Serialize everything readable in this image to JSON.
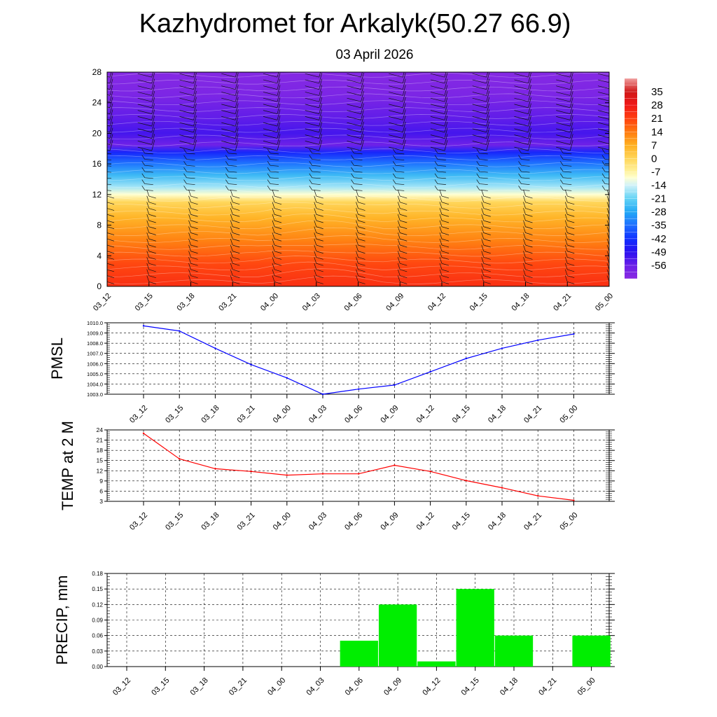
{
  "header": {
    "title": "Kazhydromet for Arkalyk(50.27 66.9)",
    "subtitle": "03 April 2026"
  },
  "colors": {
    "pmsl_line": "#0000ff",
    "temp_line": "#ff0000",
    "precip_bar": "#00ee00"
  },
  "chart_data": [
    {
      "type": "heatmap",
      "name": "cross-section",
      "title": "Kazhydromet for Arkalyk(50.27 66.9)",
      "subtitle": "03 April 2026",
      "categories": [
        "03_12",
        "03_15",
        "03_18",
        "03_21",
        "04_00",
        "04_03",
        "04_06",
        "04_09",
        "04_12",
        "04_15",
        "04_18",
        "04_21",
        "05_00"
      ],
      "ylim": [
        0,
        28
      ],
      "yticks": [
        "0",
        "4",
        "8",
        "12",
        "16",
        "20",
        "24",
        "28"
      ],
      "colorbar_labels": [
        "35",
        "28",
        "21",
        "14",
        "7",
        "0",
        "-7",
        "-14",
        "-21",
        "-28",
        "-35",
        "-42",
        "-49",
        "-56"
      ],
      "colorbar_range": [
        -63,
        42
      ],
      "color_stops": [
        {
          "v": -63,
          "c": "#8a2be2"
        },
        {
          "v": -56,
          "c": "#6a1fe8"
        },
        {
          "v": -49,
          "c": "#2a10f0"
        },
        {
          "v": -42,
          "c": "#1030ff"
        },
        {
          "v": -35,
          "c": "#1f6fff"
        },
        {
          "v": -28,
          "c": "#22a8f5"
        },
        {
          "v": -21,
          "c": "#63d3f5"
        },
        {
          "v": -14,
          "c": "#d2f2f8"
        },
        {
          "v": -10,
          "c": "#ffffd0"
        },
        {
          "v": -7,
          "c": "#fff3a0"
        },
        {
          "v": 0,
          "c": "#ffd65a"
        },
        {
          "v": 7,
          "c": "#ffb020"
        },
        {
          "v": 14,
          "c": "#ff7a10"
        },
        {
          "v": 21,
          "c": "#ff4010"
        },
        {
          "v": 28,
          "c": "#f01818"
        },
        {
          "v": 35,
          "c": "#d01818"
        },
        {
          "v": 42,
          "c": "#f0a0a0"
        }
      ],
      "height_profile": [
        {
          "h": 0,
          "v": 24
        },
        {
          "h": 3,
          "v": 20
        },
        {
          "h": 6,
          "v": 13
        },
        {
          "h": 9,
          "v": 6
        },
        {
          "h": 11,
          "v": 0
        },
        {
          "h": 12,
          "v": -10
        },
        {
          "h": 13,
          "v": -17
        },
        {
          "h": 14.5,
          "v": -25
        },
        {
          "h": 16,
          "v": -34
        },
        {
          "h": 17.5,
          "v": -44
        },
        {
          "h": 18.5,
          "v": -57
        },
        {
          "h": 20,
          "v": -52
        },
        {
          "h": 22,
          "v": -55
        },
        {
          "h": 25,
          "v": -60
        },
        {
          "h": 28,
          "v": -62
        }
      ]
    },
    {
      "type": "line",
      "name": "pmsl",
      "ylabel": "PMSL",
      "categories": [
        "03_12",
        "03_15",
        "03_18",
        "03_21",
        "04_00",
        "04_03",
        "04_06",
        "04_09",
        "04_12",
        "04_15",
        "04_18",
        "04_21",
        "05_00"
      ],
      "values": [
        1009.7,
        1009.2,
        1007.5,
        1005.9,
        1004.6,
        1003.0,
        1003.5,
        1003.9,
        1005.2,
        1006.5,
        1007.5,
        1008.3,
        1008.9
      ],
      "ylim": [
        1003.0,
        1010.0
      ],
      "yticks": [
        "1003.0",
        "1004.0",
        "1005.0",
        "1006.0",
        "1007.0",
        "1008.0",
        "1009.0",
        "1010.0"
      ]
    },
    {
      "type": "line",
      "name": "temp",
      "ylabel": "TEMP at 2 M",
      "categories": [
        "03_12",
        "03_15",
        "03_18",
        "03_21",
        "04_00",
        "04_03",
        "04_06",
        "04_09",
        "04_12",
        "04_15",
        "04_18",
        "04_21",
        "05_00"
      ],
      "values": [
        23.0,
        15.5,
        12.6,
        11.8,
        10.7,
        11.1,
        11.1,
        13.6,
        11.8,
        9.1,
        7.0,
        4.6,
        3.3
      ],
      "ylim": [
        3,
        24
      ],
      "yticks": [
        "3",
        "6",
        "9",
        "12",
        "15",
        "18",
        "21",
        "24"
      ]
    },
    {
      "type": "bar",
      "name": "precip",
      "ylabel": "PRECIP, mm",
      "categories": [
        "03_12",
        "03_15",
        "03_18",
        "03_21",
        "04_00",
        "04_03",
        "04_06",
        "04_09",
        "04_12",
        "04_15",
        "04_18",
        "04_21",
        "05_00"
      ],
      "values": [
        0,
        0,
        0,
        0,
        0,
        0,
        0.05,
        0.12,
        0.01,
        0.15,
        0.06,
        0,
        0.06
      ],
      "ylim": [
        0,
        0.18
      ],
      "yticks": [
        "0.00",
        "0.03",
        "0.06",
        "0.09",
        "0.12",
        "0.15",
        "0.18"
      ]
    }
  ]
}
